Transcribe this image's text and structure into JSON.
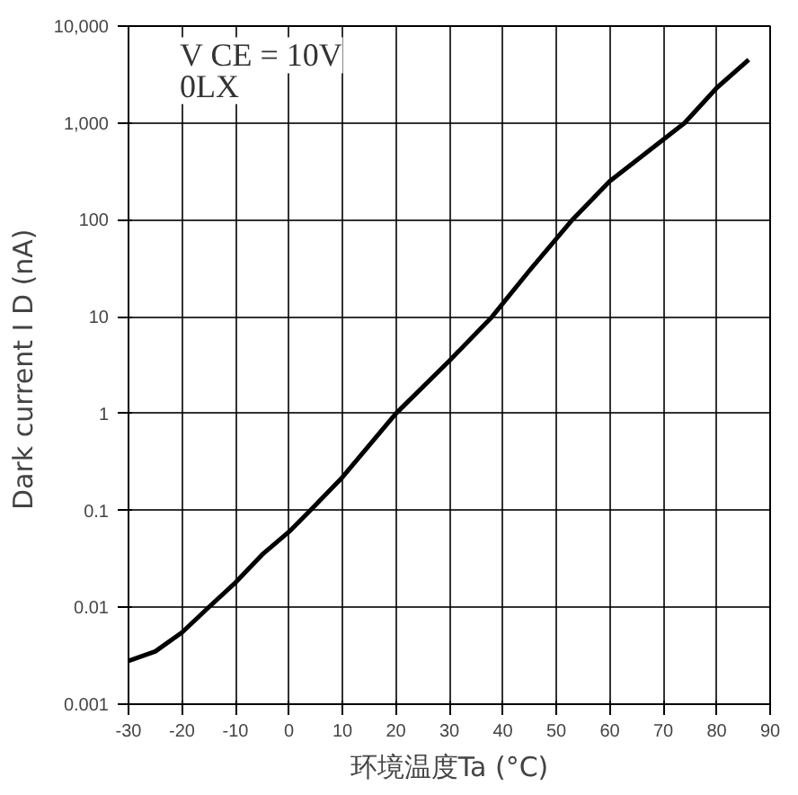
{
  "chart_data": {
    "type": "line",
    "xlabel": "环境温度Ta (°C)",
    "ylabel": "Dark current  I D (nA)",
    "annotations": [
      "V CE = 10V",
      "0LX"
    ],
    "x": [
      -30,
      -25,
      -20,
      -15,
      -10,
      -5,
      0,
      4,
      10,
      20,
      30,
      38,
      45,
      53,
      60,
      74,
      80,
      86
    ],
    "series": [
      {
        "color": "#000000",
        "values": [
          0.0028,
          0.0035,
          0.0055,
          0.01,
          0.018,
          0.035,
          0.06,
          0.1,
          0.22,
          1,
          3.5,
          10,
          30,
          100,
          250,
          1000,
          2300,
          4500
        ]
      }
    ],
    "log": "y",
    "xlim": [
      -30,
      90
    ],
    "ylim": [
      0.001,
      10000
    ],
    "xticks": [
      -30,
      -20,
      -10,
      0,
      10,
      20,
      30,
      40,
      50,
      60,
      70,
      80,
      90
    ],
    "yticks": [
      {
        "value": 0.001,
        "label": "0.001"
      },
      {
        "value": 0.01,
        "label": "0.01"
      },
      {
        "value": 0.1,
        "label": "0.1"
      },
      {
        "value": 1,
        "label": "1"
      },
      {
        "value": 10,
        "label": "10"
      },
      {
        "value": 100,
        "label": "100"
      },
      {
        "value": 1000,
        "label": "1,000"
      },
      {
        "value": 10000,
        "label": "10,000"
      }
    ],
    "grid": true,
    "marker": "none",
    "line_style": "solid"
  }
}
